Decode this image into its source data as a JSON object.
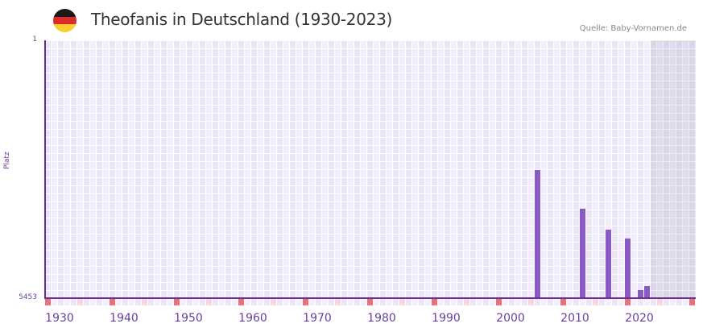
{
  "header": {
    "title": "Theofanis in Deutschland (1930-2023)",
    "source": "Quelle: Baby-Vornamen.de",
    "flag_colors": [
      "#1a1a1a",
      "#dd2a2a",
      "#f7cf2e"
    ]
  },
  "colors": {
    "bar": "#8b59c6",
    "axis": "#6b2f91",
    "label": "#6b3fa0",
    "cell_a": "#f2eefb",
    "cell_b": "#ebe6f7",
    "decade_marker": "#e8737a",
    "half_decade_marker": "#f6d7e0",
    "future_shade": "rgba(120,110,150,0.14)"
  },
  "chart_data": {
    "type": "bar",
    "title": "Theofanis in Deutschland (1930-2023)",
    "xlabel": "",
    "ylabel": "Platz",
    "y_inverted": true,
    "ylim": [
      1,
      5453
    ],
    "xlim": [
      1928,
      2028
    ],
    "grid": true,
    "x_ticks": [
      1930,
      1940,
      1950,
      1960,
      1970,
      1980,
      1990,
      2000,
      2010,
      2020
    ],
    "y_ticks": [
      1,
      5453
    ],
    "shaded_from_year": 2022,
    "categories": [
      2004,
      2011,
      2015,
      2018,
      2020,
      2021
    ],
    "series": [
      {
        "name": "Platz",
        "values": [
          2744,
          3562,
          4005,
          4192,
          5283,
          5198
        ]
      }
    ]
  },
  "axes": {
    "y_top_label": "1",
    "y_bottom_label": "5453",
    "y_name": "Platz"
  }
}
